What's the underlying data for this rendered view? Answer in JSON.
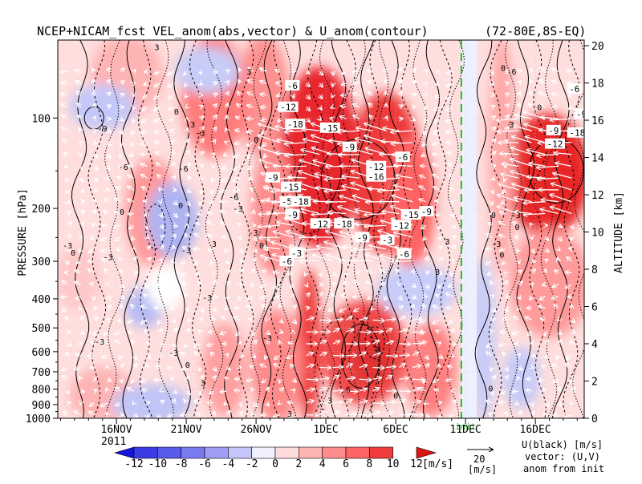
{
  "chart_data": {
    "type": "heatmap",
    "title": "NCEP+NICAM_fcst VEL_anom(abs,vector) & U_anom(contour)",
    "region": "(72-80E,8S-EQ)",
    "ylabel": "PRESSURE [hPa]",
    "y2label": "ALTITUDE [km]",
    "x_ticks": [
      {
        "label": "16NOV",
        "day": 0
      },
      {
        "label": "21NOV",
        "day": 5
      },
      {
        "label": "26NOV",
        "day": 10
      },
      {
        "label": "1DEC",
        "day": 15
      },
      {
        "label": "6DEC",
        "day": 20
      },
      {
        "label": "11DEC",
        "day": 25
      },
      {
        "label": "16DEC",
        "day": 30
      }
    ],
    "x_year_label": "2011",
    "xlim_days": [
      -4.2,
      33.5
    ],
    "y_ticks": [
      1000,
      900,
      800,
      700,
      600,
      500,
      400,
      300,
      200,
      100
    ],
    "ylim": [
      1000,
      55
    ],
    "y_scale": "log",
    "y2_ticks": [
      0,
      2,
      4,
      6,
      8,
      10,
      12,
      14,
      16,
      18,
      20
    ],
    "init_day": 24.7,
    "init_label": "init",
    "colorbar": {
      "ticks": [
        -12,
        -10,
        -8,
        -6,
        -4,
        -2,
        0,
        2,
        4,
        6,
        8,
        10,
        12
      ],
      "unit": "[m/s]",
      "colors": [
        "#1414dc",
        "#3c3ce6",
        "#5a5aeb",
        "#7a7af0",
        "#9e9ef5",
        "#c6c6fa",
        "#f0f0ff",
        "#ffdcdc",
        "#ffb4b4",
        "#ff8c8c",
        "#ff6464",
        "#f03c3c",
        "#dc1414"
      ]
    },
    "legend": {
      "ref_vector": "20",
      "ref_unit": "[m/s]",
      "line1": "U(black) [m/s]",
      "line2": "vector: (U,V)",
      "line3": "anom from init"
    },
    "contour_labels": [
      {
        "text": "-6",
        "day": 12.6,
        "p": 78
      },
      {
        "text": "-12",
        "day": 12.3,
        "p": 92
      },
      {
        "text": "-18",
        "day": 12.8,
        "p": 105
      },
      {
        "text": "-15",
        "day": 15.3,
        "p": 108
      },
      {
        "text": "-9",
        "day": 16.7,
        "p": 125
      },
      {
        "text": "-6",
        "day": 20.5,
        "p": 135
      },
      {
        "text": "-12",
        "day": 18.6,
        "p": 145
      },
      {
        "text": "-16",
        "day": 18.6,
        "p": 157
      },
      {
        "text": "-9",
        "day": 11.2,
        "p": 158
      },
      {
        "text": "-15",
        "day": 12.5,
        "p": 170
      },
      {
        "text": "-5",
        "day": 12.2,
        "p": 190
      },
      {
        "text": "-18",
        "day": 13.2,
        "p": 190
      },
      {
        "text": "-9",
        "day": 12.6,
        "p": 210
      },
      {
        "text": "-12",
        "day": 14.6,
        "p": 225
      },
      {
        "text": "-18",
        "day": 16.3,
        "p": 225
      },
      {
        "text": "-15",
        "day": 21.1,
        "p": 210
      },
      {
        "text": "-12",
        "day": 20.4,
        "p": 228
      },
      {
        "text": "-9",
        "day": 22.2,
        "p": 205
      },
      {
        "text": "-9",
        "day": 17.6,
        "p": 250
      },
      {
        "text": "-3",
        "day": 19.4,
        "p": 255
      },
      {
        "text": "-3",
        "day": 12.9,
        "p": 282
      },
      {
        "text": "-6",
        "day": 12.2,
        "p": 300
      },
      {
        "text": "-6",
        "day": 20.6,
        "p": 284
      },
      {
        "text": "-9",
        "day": 31.3,
        "p": 110
      },
      {
        "text": "-12",
        "day": 31.4,
        "p": 122
      },
      {
        "text": "-18",
        "day": 33.0,
        "p": 112
      },
      {
        "text": "-9",
        "day": 33.3,
        "p": 97
      },
      {
        "text": "-6",
        "day": 32.8,
        "p": 80
      }
    ],
    "plain_labels": [
      {
        "text": "3",
        "day": 2.9,
        "p": 58
      },
      {
        "text": "-9",
        "day": -1.0,
        "p": 108
      },
      {
        "text": "-6",
        "day": 0.5,
        "p": 145
      },
      {
        "text": "0",
        "day": 4.3,
        "p": 95
      },
      {
        "text": "-3",
        "day": 5.3,
        "p": 105
      },
      {
        "text": "-3",
        "day": 6.0,
        "p": 112
      },
      {
        "text": "-6",
        "day": 4.8,
        "p": 147
      },
      {
        "text": "-6",
        "day": 8.4,
        "p": 183
      },
      {
        "text": "3",
        "day": 9.5,
        "p": 70
      },
      {
        "text": "0",
        "day": 10.0,
        "p": 118
      },
      {
        "text": "-3",
        "day": 8.7,
        "p": 200
      },
      {
        "text": "0",
        "day": 4.6,
        "p": 195
      },
      {
        "text": "3",
        "day": 7.0,
        "p": 262
      },
      {
        "text": "-3",
        "day": 5.0,
        "p": 275
      },
      {
        "text": "-3",
        "day": -3.5,
        "p": 265
      },
      {
        "text": "0",
        "day": -3.1,
        "p": 280
      },
      {
        "text": "-3",
        "day": -0.6,
        "p": 290
      },
      {
        "text": "-3",
        "day": 9.8,
        "p": 240
      },
      {
        "text": "0",
        "day": 10.4,
        "p": 265
      },
      {
        "text": "3",
        "day": 23.0,
        "p": 325
      },
      {
        "text": "-3",
        "day": 6.5,
        "p": 395
      },
      {
        "text": "-3",
        "day": -1.2,
        "p": 555
      },
      {
        "text": "-3",
        "day": 4.1,
        "p": 605
      },
      {
        "text": "-3",
        "day": 10.8,
        "p": 540
      },
      {
        "text": "0",
        "day": 5.1,
        "p": 662
      },
      {
        "text": "3",
        "day": 18.7,
        "p": 590
      },
      {
        "text": "6",
        "day": 16.6,
        "p": 800
      },
      {
        "text": "3",
        "day": 15.3,
        "p": 870
      },
      {
        "text": "0",
        "day": 20.0,
        "p": 840
      },
      {
        "text": "3",
        "day": 12.4,
        "p": 965
      },
      {
        "text": "3",
        "day": 28.3,
        "p": 105
      },
      {
        "text": "0",
        "day": 27.7,
        "p": 68
      },
      {
        "text": "-6",
        "day": 28.3,
        "p": 70
      },
      {
        "text": "0",
        "day": 27.0,
        "p": 210
      },
      {
        "text": "-3",
        "day": 28.6,
        "p": 210
      },
      {
        "text": "-3",
        "day": 27.2,
        "p": 262
      },
      {
        "text": "0",
        "day": 27.6,
        "p": 285
      },
      {
        "text": "0",
        "day": 30.3,
        "p": 92
      },
      {
        "text": "0",
        "day": 26.8,
        "p": 795
      },
      {
        "text": "0",
        "day": 0.4,
        "p": 205
      },
      {
        "text": "3",
        "day": 23.7,
        "p": 257
      },
      {
        "text": "3",
        "day": 6.2,
        "p": 760
      },
      {
        "text": "0",
        "day": 28.7,
        "p": 230
      }
    ]
  }
}
